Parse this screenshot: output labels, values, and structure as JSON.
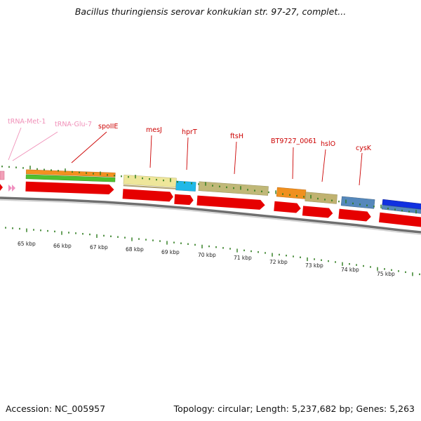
{
  "title": "Bacillus thuringiensis serovar konkukian str. 97-27, complet...",
  "accession": "Accession: NC_005957",
  "topology": "Topology: circular; Length: 5,237,682 bp; Genes: 5,263",
  "colors": {
    "cds_arrow": "#e60000",
    "trna": "#f090b8",
    "label_line": "#cc0000",
    "tick": "#2a7a1a",
    "backbone": "#777777"
  },
  "gene_labels": [
    {
      "name": "tRNA-Met-1",
      "color": "#f090b8"
    },
    {
      "name": "tRNA-Glu-7",
      "color": "#f090b8"
    },
    {
      "name": "spoIIE",
      "color": "#cc0000"
    },
    {
      "name": "mesJ",
      "color": "#cc0000"
    },
    {
      "name": "hprT",
      "color": "#cc0000"
    },
    {
      "name": "ftsH",
      "color": "#cc0000"
    },
    {
      "name": "BT9727_0061",
      "color": "#cc0000"
    },
    {
      "name": "hslO",
      "color": "#cc0000"
    },
    {
      "name": "cysK",
      "color": "#cc0000"
    }
  ],
  "scale_labels": [
    "65 kbp",
    "66 kbp",
    "67 kbp",
    "68 kbp",
    "69 kbp",
    "70 kbp",
    "71 kbp",
    "72 kbp",
    "73 kbp",
    "74 kbp",
    "75 kbp"
  ]
}
